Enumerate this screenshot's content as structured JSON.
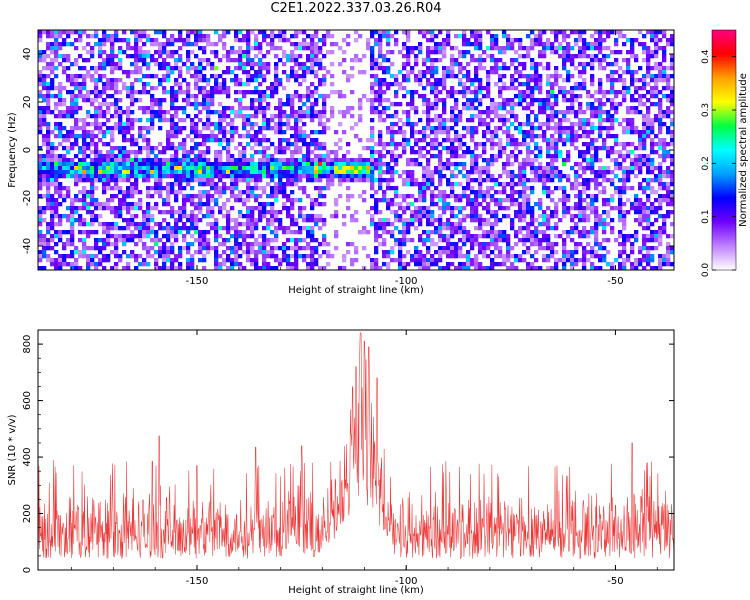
{
  "figure": {
    "title": "C2E1.2022.337.03.26.R04"
  },
  "chart_data": [
    {
      "type": "heatmap",
      "xlabel": "Height of straight line (km)",
      "ylabel": "Frequency (Hz)",
      "xlim": [
        -188,
        -36
      ],
      "ylim": [
        -50,
        50
      ],
      "xticks": [
        -150,
        -100,
        -50
      ],
      "yticks": [
        -40,
        -20,
        0,
        20,
        40
      ],
      "colorbar": {
        "label": "Normalized spectral amplitude",
        "range": [
          0,
          0.45
        ],
        "ticks": [
          0.0,
          0.1,
          0.2,
          0.3,
          0.4
        ],
        "colors": [
          "#ffffff",
          "#c080ff",
          "#7000ff",
          "#0000ff",
          "#00a0ff",
          "#00ffff",
          "#00ff40",
          "#ffff00",
          "#ffa000",
          "#ff0000",
          "#ff0080"
        ]
      },
      "features": {
        "band_frequency_hz": -8,
        "band_x_range_km": [
          -188,
          -108
        ],
        "band_peak_x_km": -113,
        "band_peak_amplitude": 0.33,
        "low_noise_x_range_km": [
          -119,
          -109
        ],
        "background_amplitude": 0.1
      },
      "grid": false
    },
    {
      "type": "line",
      "xlabel": "Height of straight line (km)",
      "ylabel": "SNR (10 * v/v)",
      "xlim": [
        -188,
        -36
      ],
      "ylim": [
        0,
        850
      ],
      "xticks": [
        -150,
        -100,
        -50
      ],
      "yticks": [
        0,
        200,
        400,
        600,
        800
      ],
      "series": [
        {
          "color": "#ee3333",
          "baseline": 150,
          "noise_range": [
            40,
            330
          ],
          "peak_x": -111,
          "peak_value": 840,
          "peaks": [
            [
              -111,
              840
            ],
            [
              -110,
              810
            ],
            [
              -109,
              790
            ],
            [
              -112,
              720
            ],
            [
              -107,
              680
            ],
            [
              -159,
              475
            ],
            [
              -136,
              435
            ],
            [
              -125,
              440
            ],
            [
              -46,
              450
            ],
            [
              -150,
              370
            ]
          ]
        }
      ],
      "grid": false
    }
  ]
}
